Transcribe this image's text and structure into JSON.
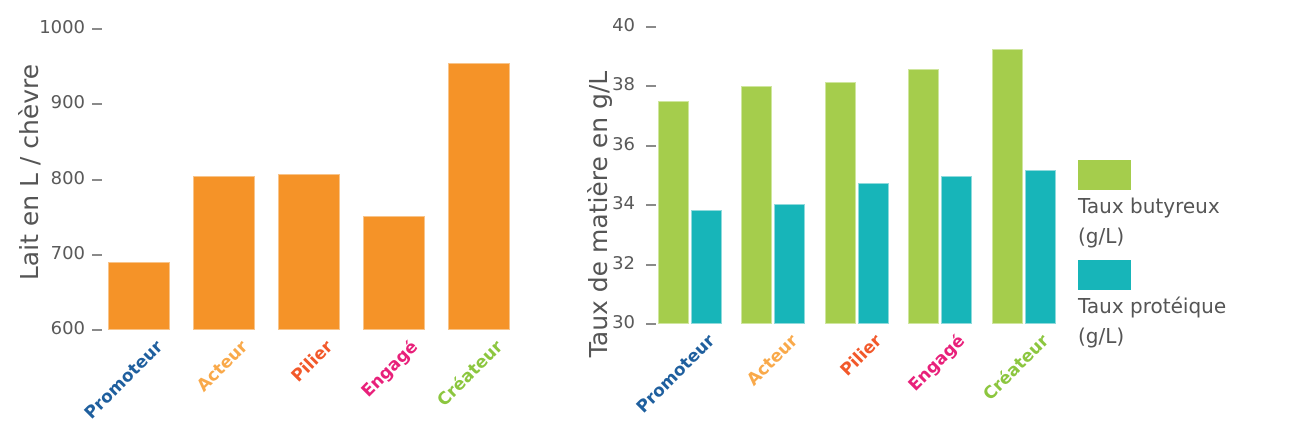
{
  "chart_data": [
    {
      "type": "bar",
      "title": "",
      "xlabel": "",
      "ylabel": "Lait en L / chèvre",
      "categories": [
        "Promoteur",
        "Acteur",
        "Pilier",
        "Engagé",
        "Créateur"
      ],
      "category_colors": [
        "#1f5f9e",
        "#f9a94a",
        "#f2582a",
        "#e8207a",
        "#8cc63f"
      ],
      "values": [
        690,
        805,
        807,
        752,
        955
      ],
      "bar_color": "#f59328",
      "ylim": [
        600,
        1000
      ],
      "yticks": [
        "1000",
        "900",
        "800",
        "700",
        "600"
      ],
      "grid": false,
      "legend": null
    },
    {
      "type": "bar",
      "title": "",
      "xlabel": "",
      "ylabel": "Taux de matière en g/L",
      "categories": [
        "Promoteur",
        "Acteur",
        "Pilier",
        "Engagé",
        "Créateur"
      ],
      "category_colors": [
        "#1f5f9e",
        "#f9a94a",
        "#f2582a",
        "#e8207a",
        "#8cc63f"
      ],
      "series": [
        {
          "name": "Taux butyreux (g/L)",
          "color": "#a5cd4c",
          "values": [
            37.5,
            38.0,
            38.15,
            38.6,
            39.25
          ]
        },
        {
          "name": "Taux protéique (g/L)",
          "color": "#17b5b9",
          "values": [
            33.85,
            34.05,
            34.75,
            35.0,
            35.2
          ]
        }
      ],
      "ylim": [
        30,
        40
      ],
      "yticks": [
        "40",
        "38",
        "36",
        "34",
        "32",
        "30"
      ],
      "grid": false,
      "legend": {
        "position": "right",
        "items": [
          {
            "line1": "Taux butyreux",
            "line2": "(g/L)",
            "color": "#a5cd4c"
          },
          {
            "line1": "Taux protéique",
            "line2": "(g/L)",
            "color": "#17b5b9"
          }
        ]
      }
    }
  ]
}
